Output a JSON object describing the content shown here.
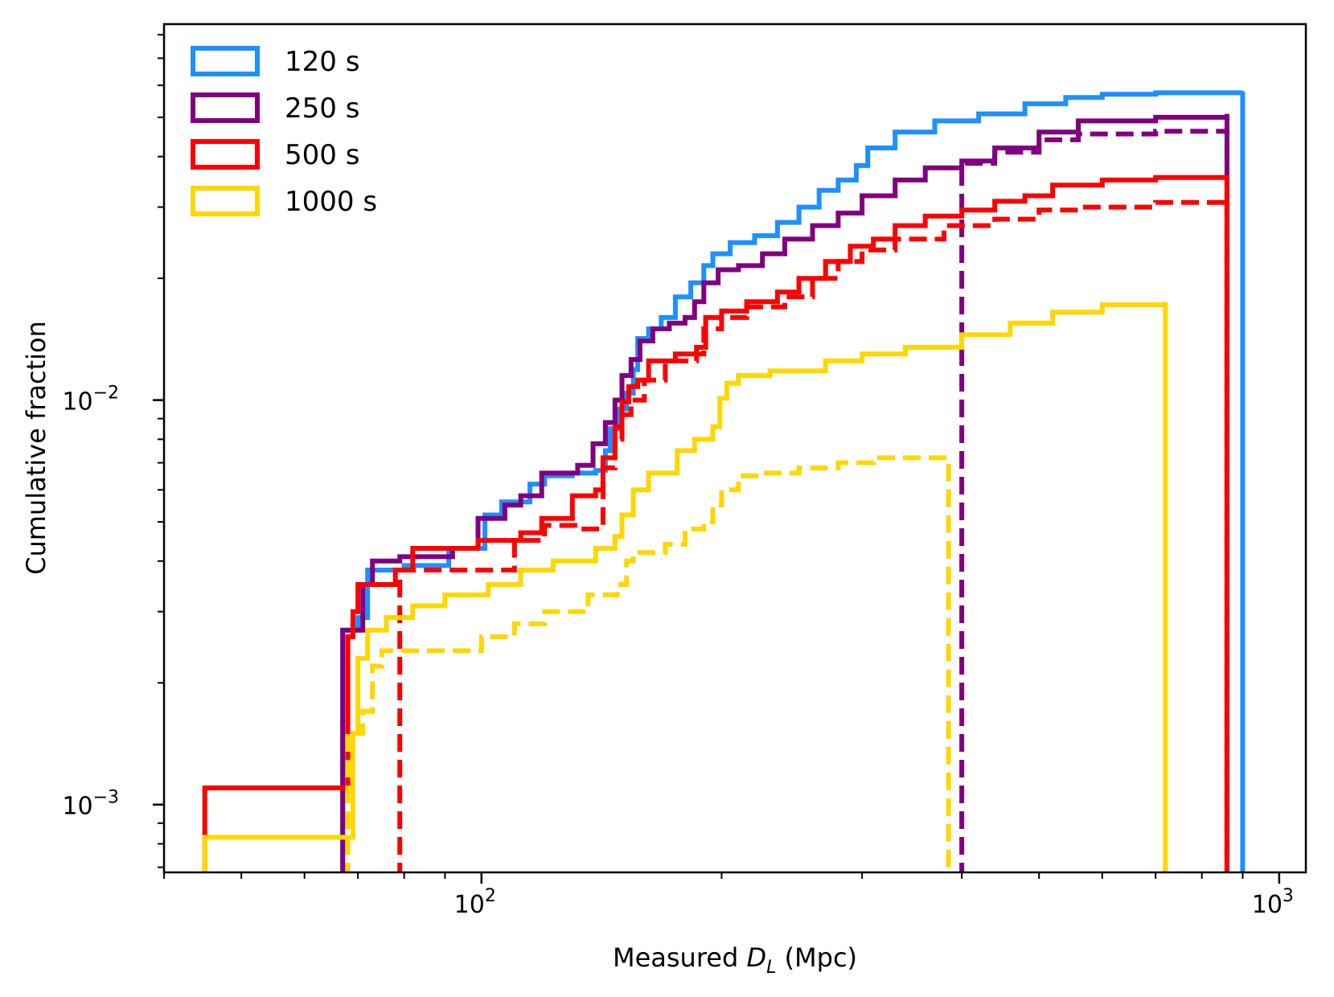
{
  "chart_data": {
    "type": "line",
    "subtype": "cumulative step histogram",
    "title": "",
    "xlabel": "Measured",
    "xlabel_symbol": "D",
    "xlabel_subscript": "L",
    "xlabel_unit": "(Mpc)",
    "ylabel": "Cumulative fraction",
    "xscale": "log",
    "yscale": "log",
    "xlim": [
      40,
      1080
    ],
    "ylim": [
      0.00068,
      0.085
    ],
    "xticks": [
      {
        "value": 100,
        "base": "10",
        "exp": "2"
      },
      {
        "value": 1000,
        "base": "10",
        "exp": "3"
      }
    ],
    "yticks": [
      {
        "value": 0.001,
        "base": "10",
        "exp": "−3"
      },
      {
        "value": 0.01,
        "base": "10",
        "exp": "−2"
      }
    ],
    "legend_position": "top-left",
    "legend": [
      {
        "label": "120 s",
        "color": "#1e90ff"
      },
      {
        "label": "250 s",
        "color": "#800080"
      },
      {
        "label": "500 s",
        "color": "#ff0000"
      },
      {
        "label": "1000 s",
        "color": "#ffd700"
      }
    ],
    "series": [
      {
        "name": "120 s",
        "style": "solid",
        "color": "#1e90ff",
        "width": 6,
        "points": [
          [
            67,
            0.0027
          ],
          [
            70,
            0.0029
          ],
          [
            72,
            0.0038
          ],
          [
            80,
            0.0039
          ],
          [
            91,
            0.0043
          ],
          [
            101,
            0.0052
          ],
          [
            106,
            0.0056
          ],
          [
            115,
            0.0062
          ],
          [
            120,
            0.0065
          ],
          [
            130,
            0.0066
          ],
          [
            139,
            0.0067
          ],
          [
            143,
            0.0075
          ],
          [
            145,
            0.0085
          ],
          [
            148,
            0.0095
          ],
          [
            152,
            0.0104
          ],
          [
            155,
            0.0119
          ],
          [
            157,
            0.0142
          ],
          [
            162,
            0.015
          ],
          [
            168,
            0.016
          ],
          [
            175,
            0.018
          ],
          [
            183,
            0.0195
          ],
          [
            190,
            0.0215
          ],
          [
            195,
            0.023
          ],
          [
            205,
            0.0245
          ],
          [
            220,
            0.0255
          ],
          [
            235,
            0.0275
          ],
          [
            250,
            0.03
          ],
          [
            265,
            0.033
          ],
          [
            280,
            0.035
          ],
          [
            295,
            0.038
          ],
          [
            305,
            0.042
          ],
          [
            330,
            0.046
          ],
          [
            370,
            0.049
          ],
          [
            420,
            0.051
          ],
          [
            480,
            0.054
          ],
          [
            540,
            0.056
          ],
          [
            600,
            0.057
          ],
          [
            700,
            0.0575
          ],
          [
            900,
            0.058
          ]
        ]
      },
      {
        "name": "250 s",
        "style": "solid",
        "color": "#800080",
        "width": 6,
        "points": [
          [
            67,
            0.0027
          ],
          [
            71,
            0.0035
          ],
          [
            73,
            0.004
          ],
          [
            79,
            0.0041
          ],
          [
            92,
            0.0043
          ],
          [
            99,
            0.0051
          ],
          [
            107,
            0.0055
          ],
          [
            112,
            0.0058
          ],
          [
            119,
            0.0066
          ],
          [
            132,
            0.0069
          ],
          [
            138,
            0.0078
          ],
          [
            143,
            0.0088
          ],
          [
            147,
            0.01
          ],
          [
            150,
            0.0115
          ],
          [
            154,
            0.0126
          ],
          [
            158,
            0.014
          ],
          [
            164,
            0.015
          ],
          [
            172,
            0.0155
          ],
          [
            180,
            0.016
          ],
          [
            185,
            0.0175
          ],
          [
            190,
            0.0195
          ],
          [
            198,
            0.021
          ],
          [
            210,
            0.0215
          ],
          [
            225,
            0.023
          ],
          [
            240,
            0.025
          ],
          [
            260,
            0.027
          ],
          [
            280,
            0.029
          ],
          [
            300,
            0.032
          ],
          [
            330,
            0.035
          ],
          [
            360,
            0.0375
          ],
          [
            400,
            0.039
          ],
          [
            440,
            0.042
          ],
          [
            500,
            0.046
          ],
          [
            560,
            0.049
          ],
          [
            700,
            0.05
          ],
          [
            860,
            0.051
          ]
        ]
      },
      {
        "name": "250 s dashed",
        "style": "dashed",
        "color": "#800080",
        "width": 6,
        "points": [
          [
            400,
            0.0385
          ],
          [
            440,
            0.041
          ],
          [
            500,
            0.044
          ],
          [
            560,
            0.0455
          ],
          [
            700,
            0.0462
          ],
          [
            860,
            0.0465
          ]
        ]
      },
      {
        "name": "500 s",
        "style": "solid",
        "color": "#ff0000",
        "width": 6,
        "points": [
          [
            45,
            0.0011
          ],
          [
            67,
            0.0011
          ],
          [
            68,
            0.0026
          ],
          [
            69,
            0.003
          ],
          [
            70,
            0.0035
          ],
          [
            78,
            0.0038
          ],
          [
            82,
            0.0043
          ],
          [
            99,
            0.0045
          ],
          [
            112,
            0.0047
          ],
          [
            119,
            0.0051
          ],
          [
            130,
            0.0058
          ],
          [
            139,
            0.006
          ],
          [
            142,
            0.0072
          ],
          [
            147,
            0.0086
          ],
          [
            150,
            0.0099
          ],
          [
            153,
            0.0108
          ],
          [
            157,
            0.0112
          ],
          [
            162,
            0.0125
          ],
          [
            175,
            0.013
          ],
          [
            186,
            0.0135
          ],
          [
            191,
            0.016
          ],
          [
            200,
            0.0166
          ],
          [
            215,
            0.0175
          ],
          [
            235,
            0.0185
          ],
          [
            250,
            0.02
          ],
          [
            270,
            0.022
          ],
          [
            290,
            0.024
          ],
          [
            310,
            0.025
          ],
          [
            330,
            0.027
          ],
          [
            360,
            0.0285
          ],
          [
            400,
            0.0295
          ],
          [
            440,
            0.031
          ],
          [
            480,
            0.032
          ],
          [
            520,
            0.034
          ],
          [
            600,
            0.035
          ],
          [
            700,
            0.0355
          ],
          [
            860,
            0.036
          ]
        ]
      },
      {
        "name": "500 s dashed",
        "style": "dashed",
        "color": "#ff0000",
        "width": 6,
        "points": [
          [
            79,
            0.0038
          ],
          [
            92,
            0.0038
          ],
          [
            110,
            0.0045
          ],
          [
            120,
            0.0049
          ],
          [
            131,
            0.0048
          ],
          [
            142,
            0.0068
          ],
          [
            147,
            0.008
          ],
          [
            150,
            0.0092
          ],
          [
            154,
            0.01
          ],
          [
            160,
            0.0112
          ],
          [
            170,
            0.0125
          ],
          [
            186,
            0.013
          ],
          [
            190,
            0.015
          ],
          [
            200,
            0.016
          ],
          [
            215,
            0.017
          ],
          [
            240,
            0.018
          ],
          [
            260,
            0.02
          ],
          [
            280,
            0.022
          ],
          [
            300,
            0.0235
          ],
          [
            330,
            0.025
          ],
          [
            380,
            0.027
          ],
          [
            440,
            0.028
          ],
          [
            500,
            0.0295
          ],
          [
            560,
            0.03
          ],
          [
            700,
            0.0308
          ],
          [
            860,
            0.0312
          ]
        ]
      },
      {
        "name": "1000 s",
        "style": "solid",
        "color": "#ffd700",
        "width": 6,
        "points": [
          [
            45,
            0.00083
          ],
          [
            68,
            0.00083
          ],
          [
            69,
            0.0015
          ],
          [
            70,
            0.0023
          ],
          [
            72,
            0.0027
          ],
          [
            76,
            0.0029
          ],
          [
            82,
            0.0031
          ],
          [
            90,
            0.0033
          ],
          [
            102,
            0.0035
          ],
          [
            112,
            0.0038
          ],
          [
            123,
            0.004
          ],
          [
            139,
            0.0043
          ],
          [
            147,
            0.0046
          ],
          [
            150,
            0.0052
          ],
          [
            155,
            0.006
          ],
          [
            162,
            0.0066
          ],
          [
            176,
            0.0075
          ],
          [
            185,
            0.008
          ],
          [
            195,
            0.0086
          ],
          [
            199,
            0.0101
          ],
          [
            203,
            0.011
          ],
          [
            210,
            0.0115
          ],
          [
            230,
            0.0118
          ],
          [
            270,
            0.0125
          ],
          [
            300,
            0.013
          ],
          [
            340,
            0.0135
          ],
          [
            400,
            0.0145
          ],
          [
            460,
            0.0155
          ],
          [
            520,
            0.0165
          ],
          [
            600,
            0.0172
          ],
          [
            720,
            0.0175
          ]
        ]
      },
      {
        "name": "1000 s dashed",
        "style": "dashed",
        "color": "#ffd700",
        "width": 6,
        "points": [
          [
            68,
            0.0015
          ],
          [
            71,
            0.0017
          ],
          [
            73,
            0.0022
          ],
          [
            75,
            0.0024
          ],
          [
            100,
            0.0026
          ],
          [
            110,
            0.0028
          ],
          [
            120,
            0.003
          ],
          [
            136,
            0.0033
          ],
          [
            148,
            0.0035
          ],
          [
            152,
            0.004
          ],
          [
            155,
            0.0042
          ],
          [
            170,
            0.0044
          ],
          [
            180,
            0.0048
          ],
          [
            190,
            0.005
          ],
          [
            195,
            0.0055
          ],
          [
            200,
            0.006
          ],
          [
            210,
            0.0065
          ],
          [
            225,
            0.0066
          ],
          [
            250,
            0.0068
          ],
          [
            280,
            0.007
          ],
          [
            310,
            0.0072
          ],
          [
            385,
            0.0072
          ]
        ]
      }
    ]
  }
}
